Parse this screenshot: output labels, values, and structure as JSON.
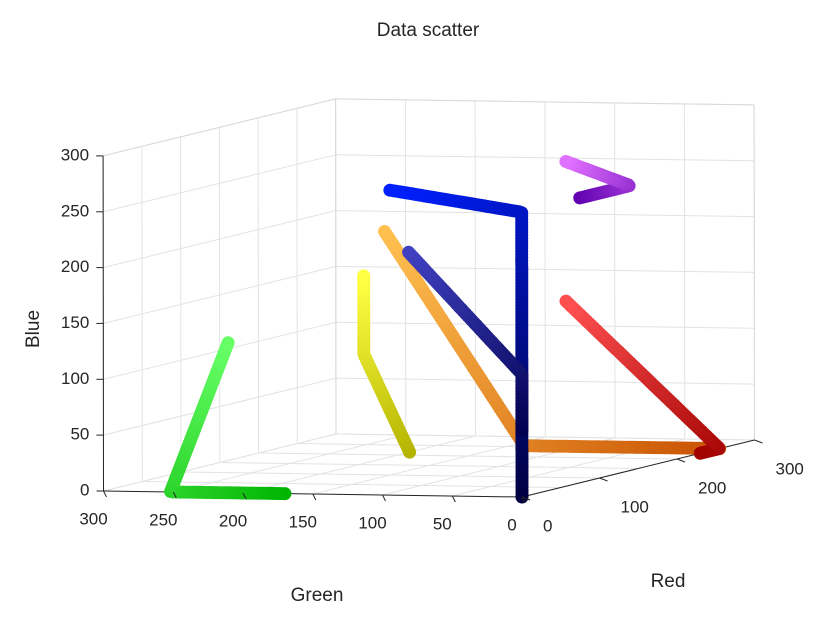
{
  "chart_data": {
    "type": "scatter",
    "title": "Data scatter",
    "xlabel": "Red",
    "ylabel": "Green",
    "zlabel": "Blue",
    "xlim": [
      0,
      300
    ],
    "ylim": [
      0,
      300
    ],
    "zlim": [
      0,
      300
    ],
    "x_ticks": [
      "0",
      "100",
      "200",
      "300"
    ],
    "y_ticks": [
      "0",
      "50",
      "100",
      "150",
      "200",
      "250",
      "300"
    ],
    "z_ticks": [
      "0",
      "50",
      "100",
      "150",
      "200",
      "250",
      "300"
    ],
    "grid": true,
    "box_color": "#d9d9d9",
    "series": [
      {
        "color_from": "#00b400",
        "color_to": "#66ff66",
        "path": [
          [
            0,
            170,
            0
          ],
          [
            0,
            252,
            0
          ],
          [
            80,
            255,
            120
          ]
        ]
      },
      {
        "color_from": "#b4b400",
        "color_to": "#ffff44",
        "path": [
          [
            215,
            200,
            0
          ],
          [
            255,
            255,
            80
          ],
          [
            255,
            255,
            150
          ]
        ]
      },
      {
        "color_from": "#c85000",
        "color_to": "#ffc050",
        "path": [
          [
            255,
            0,
            0
          ],
          [
            255,
            140,
            0
          ],
          [
            255,
            240,
            190
          ]
        ]
      },
      {
        "color_from": "#a00000",
        "color_to": "#ff5050",
        "path": [
          [
            230,
            0,
            0
          ],
          [
            255,
            0,
            0
          ],
          [
            255,
            110,
            130
          ]
        ]
      },
      {
        "color_from": "#000040",
        "color_to": "#0020ff",
        "path": [
          [
            0,
            0,
            0
          ],
          [
            0,
            0,
            255
          ],
          [
            100,
            150,
            255
          ]
        ]
      },
      {
        "color_from": "#000050",
        "color_to": "#4040c0",
        "path": [
          [
            0,
            0,
            60
          ],
          [
            0,
            0,
            110
          ],
          [
            70,
            120,
            205
          ]
        ]
      },
      {
        "color_from": "#6000b0",
        "color_to": "#e070ff",
        "path": [
          [
            75,
            0,
            255
          ],
          [
            140,
            0,
            255
          ],
          [
            255,
            110,
            255
          ]
        ]
      }
    ]
  }
}
